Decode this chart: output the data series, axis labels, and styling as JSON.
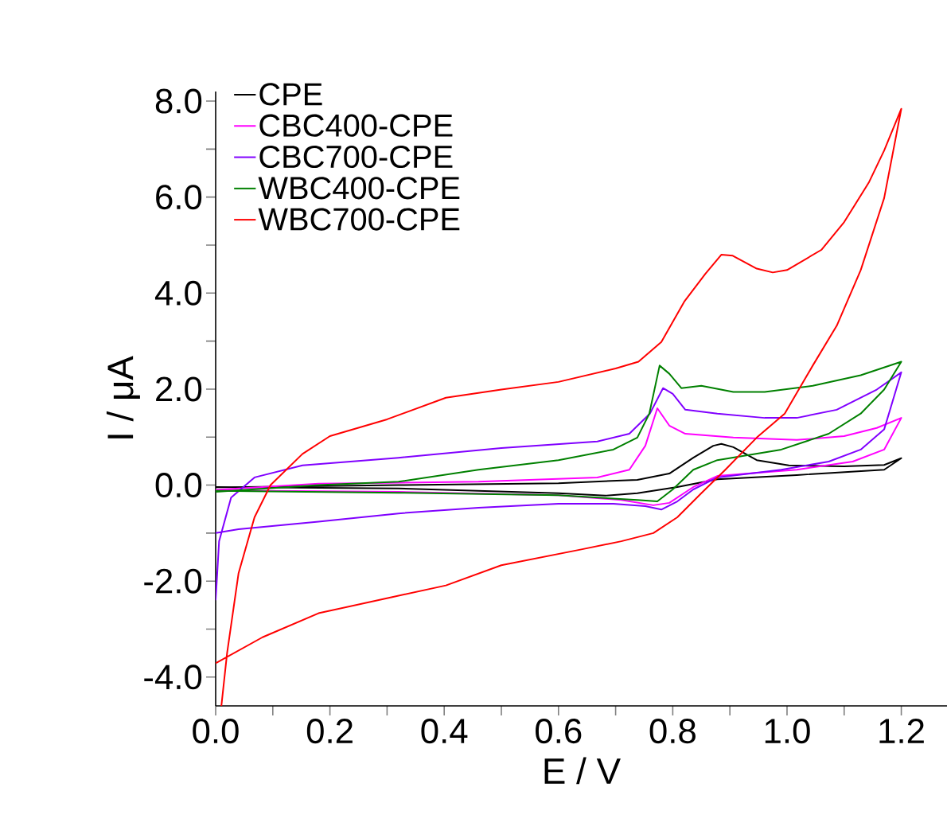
{
  "chart_data": {
    "type": "line",
    "xlabel": "E / V",
    "ylabel": "I / μA",
    "legend": "top left",
    "grid": false,
    "marker": "none",
    "line_style": "solid",
    "xlim": [
      0,
      1.28
    ],
    "ylim": [
      -4.6,
      8.2
    ],
    "xticks": [
      {
        "value": 0,
        "label": "0.0"
      },
      {
        "value": 0.1,
        "label": null
      },
      {
        "value": 0.2,
        "label": "0.2"
      },
      {
        "value": 0.3,
        "label": null
      },
      {
        "value": 0.4,
        "label": "0.4"
      },
      {
        "value": 0.5,
        "label": null
      },
      {
        "value": 0.6,
        "label": "0.6"
      },
      {
        "value": 0.7,
        "label": null
      },
      {
        "value": 0.8,
        "label": "0.8"
      },
      {
        "value": 0.9,
        "label": null
      },
      {
        "value": 1.0,
        "label": "1.0"
      },
      {
        "value": 1.1,
        "label": null
      },
      {
        "value": 1.2,
        "label": "1.2"
      }
    ],
    "yticks": [
      {
        "value": -4,
        "label": "-4.0"
      },
      {
        "value": -3,
        "label": null
      },
      {
        "value": -2,
        "label": "-2.0"
      },
      {
        "value": -1,
        "label": null
      },
      {
        "value": 0,
        "label": "0.0"
      },
      {
        "value": 1,
        "label": null
      },
      {
        "value": 2,
        "label": "2.0"
      },
      {
        "value": 3,
        "label": null
      },
      {
        "value": 4,
        "label": "4.0"
      },
      {
        "value": 5,
        "label": null
      },
      {
        "value": 6,
        "label": "6.0"
      },
      {
        "value": 7,
        "label": null
      },
      {
        "value": 8,
        "label": "8.0"
      }
    ],
    "series": [
      {
        "name": "CPE",
        "color": "#000000",
        "x": [
          0,
          0.32,
          0.6,
          0.738,
          0.794,
          0.836,
          0.871,
          0.885,
          0.906,
          0.947,
          1.003,
          1.1,
          1.17,
          1.2,
          1.17,
          1.017,
          0.878,
          0.808,
          0.738,
          0.682,
          0.6,
          0.32,
          0
        ],
        "values": [
          -0.05,
          0,
          0.04,
          0.11,
          0.24,
          0.57,
          0.82,
          0.86,
          0.79,
          0.52,
          0.41,
          0.39,
          0.42,
          0.56,
          0.32,
          0.21,
          0.12,
          -0.04,
          -0.17,
          -0.22,
          -0.17,
          -0.07,
          -0.04
        ]
      },
      {
        "name": "CBC400-CPE",
        "color": "#ff00ff",
        "x": [
          0,
          0.18,
          0.46,
          0.668,
          0.724,
          0.752,
          0.773,
          0.794,
          0.822,
          0.906,
          1.017,
          1.1,
          1.157,
          1.2,
          1.17,
          1.115,
          1.017,
          0.878,
          0.836,
          0.794,
          0.766,
          0.71,
          0.6,
          0.32,
          0
        ],
        "values": [
          -0.1,
          0.03,
          0.07,
          0.16,
          0.32,
          0.82,
          1.6,
          1.24,
          1.07,
          0.99,
          0.94,
          1.02,
          1.19,
          1.4,
          0.74,
          0.49,
          0.32,
          0.19,
          -0.04,
          -0.37,
          -0.42,
          -0.31,
          -0.21,
          -0.14,
          -0.11
        ]
      },
      {
        "name": "CBC700-CPE",
        "color": "#8000ff",
        "x": [
          0,
          0.006,
          0.027,
          0.068,
          0.152,
          0.32,
          0.5,
          0.668,
          0.724,
          0.76,
          0.783,
          0.8,
          0.822,
          0.878,
          0.961,
          1.017,
          1.087,
          1.157,
          1.2,
          1.17,
          1.129,
          1.073,
          0.99,
          0.878,
          0.836,
          0.808,
          0.78,
          0.752,
          0.696,
          0.6,
          0.46,
          0.32,
          0.18,
          0.04,
          0
        ],
        "values": [
          -2.4,
          -1.17,
          -0.26,
          0.16,
          0.41,
          0.57,
          0.77,
          0.91,
          1.07,
          1.49,
          2.02,
          1.9,
          1.57,
          1.49,
          1.4,
          1.4,
          1.57,
          1.99,
          2.35,
          1.16,
          0.74,
          0.49,
          0.32,
          0.16,
          -0.09,
          -0.34,
          -0.51,
          -0.44,
          -0.39,
          -0.39,
          -0.47,
          -0.59,
          -0.76,
          -0.92,
          -1.0
        ]
      },
      {
        "name": "WBC400-CPE",
        "color": "#008000",
        "x": [
          0,
          0.18,
          0.32,
          0.46,
          0.6,
          0.696,
          0.738,
          0.759,
          0.777,
          0.794,
          0.815,
          0.85,
          0.906,
          0.961,
          1.045,
          1.129,
          1.2,
          1.17,
          1.129,
          1.073,
          0.99,
          0.878,
          0.836,
          0.8,
          0.773,
          0.738,
          0.6,
          0.32,
          0
        ],
        "values": [
          -0.14,
          0,
          0.07,
          0.32,
          0.52,
          0.74,
          0.99,
          1.49,
          2.49,
          2.32,
          2.02,
          2.07,
          1.94,
          1.94,
          2.07,
          2.29,
          2.57,
          1.99,
          1.49,
          1.07,
          0.74,
          0.52,
          0.32,
          -0.09,
          -0.34,
          -0.31,
          -0.21,
          -0.16,
          -0.12
        ]
      },
      {
        "name": "WBC700-CPE",
        "color": "#ff0000",
        "x": [
          0.01,
          0.02,
          0.04,
          0.068,
          0.096,
          0.152,
          0.2,
          0.3,
          0.403,
          0.5,
          0.6,
          0.7,
          0.74,
          0.78,
          0.82,
          0.857,
          0.885,
          0.905,
          0.947,
          0.975,
          1.0,
          1.06,
          1.1,
          1.143,
          1.17,
          1.2,
          1.17,
          1.129,
          1.087,
          1.045,
          0.996,
          0.947,
          0.892,
          0.85,
          0.808,
          0.766,
          0.71,
          0.64,
          0.5,
          0.403,
          0.306,
          0.18,
          0.082,
          0
        ],
        "values": [
          -4.6,
          -3.5,
          -1.84,
          -0.67,
          0,
          0.65,
          1.02,
          1.37,
          1.82,
          1.99,
          2.15,
          2.43,
          2.57,
          2.98,
          3.82,
          4.4,
          4.8,
          4.78,
          4.51,
          4.43,
          4.48,
          4.9,
          5.48,
          6.3,
          6.97,
          7.84,
          5.98,
          4.48,
          3.32,
          2.49,
          1.49,
          0.99,
          0.32,
          -0.17,
          -0.67,
          -1.0,
          -1.17,
          -1.34,
          -1.67,
          -2.09,
          -2.34,
          -2.67,
          -3.17,
          -3.71
        ]
      }
    ]
  }
}
